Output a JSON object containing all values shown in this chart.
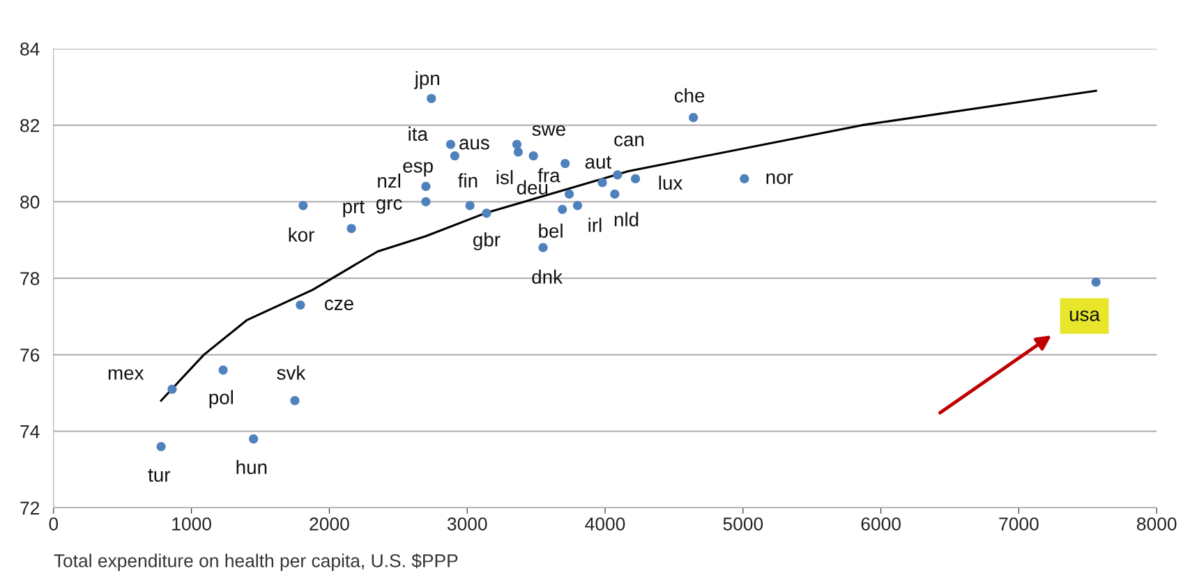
{
  "chart_data": {
    "type": "scatter",
    "xlabel": "Total expenditure on health per capita, U.S. $PPP",
    "series": [
      {
        "color": "#4f81bd",
        "marker": "circle",
        "x": [
          780,
          860,
          1230,
          1450,
          1750,
          1790,
          1810,
          2160,
          2700,
          2700,
          2740,
          2880,
          2910,
          3020,
          3140,
          3360,
          3370,
          3480,
          3550,
          3690,
          3710,
          3740,
          3800,
          3980,
          4070,
          4090,
          4220,
          4640,
          5010,
          7560
        ],
        "values": [
          73.6,
          75.1,
          75.6,
          73.8,
          74.8,
          77.3,
          79.9,
          79.3,
          80.4,
          80.0,
          82.7,
          81.5,
          81.2,
          79.9,
          79.7,
          81.5,
          81.3,
          81.2,
          78.8,
          79.8,
          81.0,
          80.2,
          79.9,
          80.5,
          80.2,
          80.7,
          80.6,
          82.2,
          80.6,
          77.9
        ]
      },
      {
        "type": "line",
        "color": "#000000",
        "marker": "none",
        "line_style": "solid",
        "x": [
          780,
          1090,
          1400,
          1880,
          2350,
          2700,
          3130,
          4170,
          5860,
          7560
        ],
        "values": [
          74.8,
          76.0,
          76.9,
          77.7,
          78.7,
          79.1,
          79.7,
          80.8,
          82.0,
          82.9
        ]
      }
    ],
    "annotations": [
      {
        "text": "jpn",
        "x": 2740,
        "y": 82.7
      },
      {
        "text": "ita",
        "x": 2880,
        "y": 81.5
      },
      {
        "text": "aus",
        "x": 3360,
        "y": 81.5
      },
      {
        "text": "swe",
        "x": 3480,
        "y": 81.2
      },
      {
        "text": "esp",
        "x": 2910,
        "y": 81.2
      },
      {
        "text": "isl",
        "x": 3370,
        "y": 81.3
      },
      {
        "text": "fra",
        "x": 3480,
        "y": 81.2
      },
      {
        "text": "aut",
        "x": 3710,
        "y": 81.0
      },
      {
        "text": "can",
        "x": 4090,
        "y": 80.7
      },
      {
        "text": "nzl",
        "x": 2700,
        "y": 80.4
      },
      {
        "text": "fin",
        "x": 3020,
        "y": 79.9
      },
      {
        "text": "deu",
        "x": 3740,
        "y": 80.2
      },
      {
        "text": "grc",
        "x": 2700,
        "y": 80.0
      },
      {
        "text": "bel",
        "x": 3690,
        "y": 79.8
      },
      {
        "text": "irl",
        "x": 3800,
        "y": 79.9
      },
      {
        "text": "nld",
        "x": 4070,
        "y": 80.2
      },
      {
        "text": "gbr",
        "x": 3140,
        "y": 79.7
      },
      {
        "text": "dnk",
        "x": 3550,
        "y": 78.8
      },
      {
        "text": "lux",
        "x": 4220,
        "y": 80.6
      },
      {
        "text": "nor",
        "x": 5010,
        "y": 80.6
      },
      {
        "text": "che",
        "x": 4640,
        "y": 82.2
      },
      {
        "text": "usa",
        "x": 7560,
        "y": 77.9
      },
      {
        "text": "kor",
        "x": 1810,
        "y": 79.9
      },
      {
        "text": "prt",
        "x": 2160,
        "y": 79.3
      },
      {
        "text": "cze",
        "x": 1790,
        "y": 77.3
      },
      {
        "text": "mex",
        "x": 860,
        "y": 75.1
      },
      {
        "text": "pol",
        "x": 1230,
        "y": 75.6
      },
      {
        "text": "svk",
        "x": 1750,
        "y": 74.8
      },
      {
        "text": "tur",
        "x": 780,
        "y": 73.6
      },
      {
        "text": "hun",
        "x": 1450,
        "y": 73.8
      }
    ],
    "xlim": [
      0,
      8000
    ],
    "xticks": [
      0,
      1000,
      2000,
      3000,
      4000,
      5000,
      6000,
      7000,
      8000
    ],
    "ylim": [
      72,
      84
    ],
    "yticks": [
      72,
      74,
      76,
      78,
      80,
      82,
      84
    ],
    "grid": "y",
    "legend": false
  }
}
